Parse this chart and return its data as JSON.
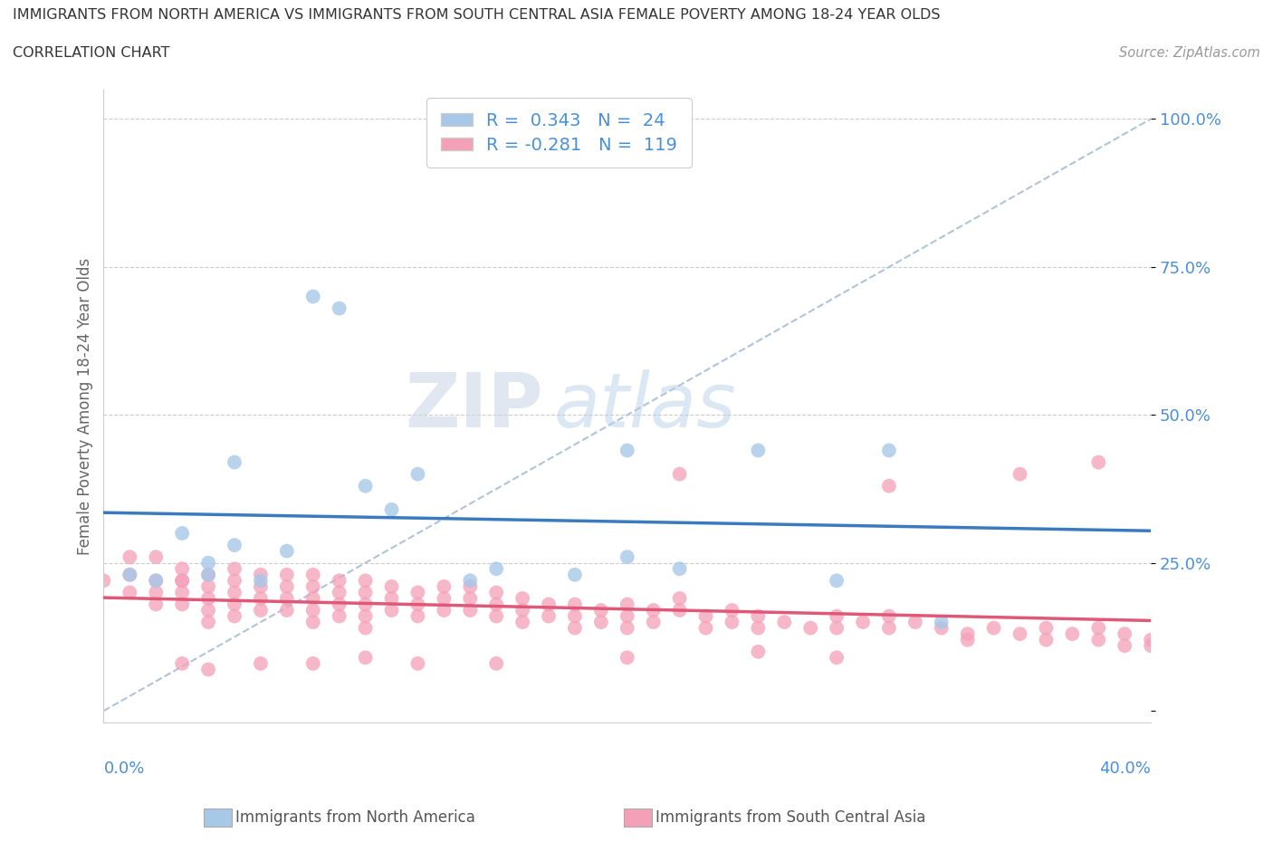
{
  "title_line1": "IMMIGRANTS FROM NORTH AMERICA VS IMMIGRANTS FROM SOUTH CENTRAL ASIA FEMALE POVERTY AMONG 18-24 YEAR OLDS",
  "title_line2": "CORRELATION CHART",
  "source": "Source: ZipAtlas.com",
  "ylabel": "Female Poverty Among 18-24 Year Olds",
  "xlim": [
    0.0,
    0.4
  ],
  "ylim": [
    -0.02,
    1.05
  ],
  "blue_R": 0.343,
  "blue_N": 24,
  "pink_R": -0.281,
  "pink_N": 119,
  "blue_color": "#a8c8e8",
  "pink_color": "#f4a0b8",
  "blue_line_color": "#3a7abf",
  "pink_line_color": "#e05878",
  "watermark_zip": "ZIP",
  "watermark_atlas": "atlas",
  "blue_scatter_x": [
    0.01,
    0.02,
    0.03,
    0.04,
    0.04,
    0.05,
    0.05,
    0.06,
    0.07,
    0.08,
    0.09,
    0.1,
    0.11,
    0.12,
    0.14,
    0.15,
    0.18,
    0.2,
    0.22,
    0.25,
    0.3,
    0.32,
    0.2,
    0.28
  ],
  "blue_scatter_y": [
    0.23,
    0.22,
    0.3,
    0.25,
    0.23,
    0.42,
    0.28,
    0.22,
    0.27,
    0.7,
    0.68,
    0.38,
    0.34,
    0.4,
    0.22,
    0.24,
    0.23,
    0.26,
    0.24,
    0.44,
    0.44,
    0.15,
    0.44,
    0.22
  ],
  "pink_scatter_x": [
    0.0,
    0.01,
    0.01,
    0.01,
    0.02,
    0.02,
    0.02,
    0.02,
    0.03,
    0.03,
    0.03,
    0.03,
    0.03,
    0.04,
    0.04,
    0.04,
    0.04,
    0.04,
    0.05,
    0.05,
    0.05,
    0.05,
    0.05,
    0.06,
    0.06,
    0.06,
    0.06,
    0.07,
    0.07,
    0.07,
    0.07,
    0.08,
    0.08,
    0.08,
    0.08,
    0.08,
    0.09,
    0.09,
    0.09,
    0.09,
    0.1,
    0.1,
    0.1,
    0.1,
    0.1,
    0.11,
    0.11,
    0.11,
    0.12,
    0.12,
    0.12,
    0.13,
    0.13,
    0.13,
    0.14,
    0.14,
    0.14,
    0.15,
    0.15,
    0.15,
    0.16,
    0.16,
    0.16,
    0.17,
    0.17,
    0.18,
    0.18,
    0.18,
    0.19,
    0.19,
    0.2,
    0.2,
    0.2,
    0.21,
    0.21,
    0.22,
    0.22,
    0.23,
    0.23,
    0.24,
    0.24,
    0.25,
    0.25,
    0.26,
    0.27,
    0.28,
    0.28,
    0.29,
    0.3,
    0.3,
    0.31,
    0.32,
    0.33,
    0.34,
    0.35,
    0.36,
    0.36,
    0.37,
    0.38,
    0.38,
    0.39,
    0.39,
    0.4,
    0.4,
    0.22,
    0.3,
    0.35,
    0.38,
    0.33,
    0.25,
    0.28,
    0.15,
    0.2,
    0.12,
    0.08,
    0.1,
    0.06,
    0.04,
    0.03
  ],
  "pink_scatter_y": [
    0.22,
    0.26,
    0.23,
    0.2,
    0.22,
    0.2,
    0.18,
    0.26,
    0.22,
    0.2,
    0.18,
    0.22,
    0.24,
    0.21,
    0.19,
    0.23,
    0.17,
    0.15,
    0.22,
    0.2,
    0.18,
    0.16,
    0.24,
    0.21,
    0.19,
    0.23,
    0.17,
    0.21,
    0.19,
    0.23,
    0.17,
    0.21,
    0.19,
    0.17,
    0.15,
    0.23,
    0.2,
    0.18,
    0.16,
    0.22,
    0.2,
    0.18,
    0.16,
    0.14,
    0.22,
    0.19,
    0.17,
    0.21,
    0.2,
    0.18,
    0.16,
    0.19,
    0.17,
    0.21,
    0.19,
    0.17,
    0.21,
    0.2,
    0.18,
    0.16,
    0.19,
    0.17,
    0.15,
    0.18,
    0.16,
    0.18,
    0.16,
    0.14,
    0.17,
    0.15,
    0.18,
    0.16,
    0.14,
    0.17,
    0.15,
    0.19,
    0.17,
    0.16,
    0.14,
    0.17,
    0.15,
    0.16,
    0.14,
    0.15,
    0.14,
    0.16,
    0.14,
    0.15,
    0.16,
    0.14,
    0.15,
    0.14,
    0.13,
    0.14,
    0.13,
    0.14,
    0.12,
    0.13,
    0.14,
    0.12,
    0.13,
    0.11,
    0.12,
    0.11,
    0.4,
    0.38,
    0.4,
    0.42,
    0.12,
    0.1,
    0.09,
    0.08,
    0.09,
    0.08,
    0.08,
    0.09,
    0.08,
    0.07,
    0.08
  ]
}
